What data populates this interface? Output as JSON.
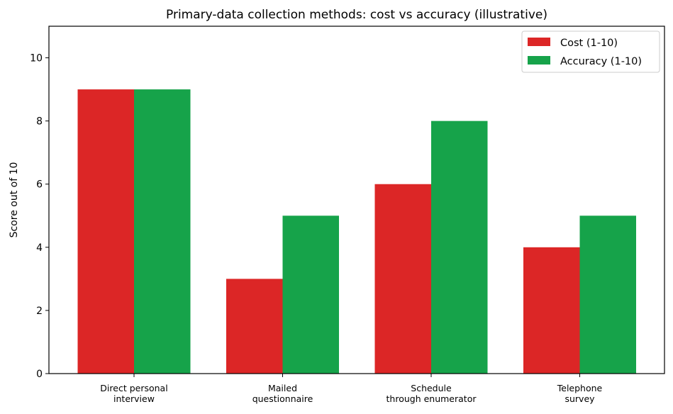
{
  "chart_data": {
    "type": "bar",
    "title": "Primary-data collection methods: cost vs accuracy (illustrative)",
    "xlabel": "",
    "ylabel": "Score out of 10",
    "ylim": [
      0,
      11
    ],
    "yticks": [
      0,
      2,
      4,
      6,
      8,
      10
    ],
    "categories": [
      [
        "Direct personal",
        "interview"
      ],
      [
        "Mailed",
        "questionnaire"
      ],
      [
        "Schedule",
        "through enumerator"
      ],
      [
        "Telephone",
        "survey"
      ]
    ],
    "series": [
      {
        "name": "Cost (1-10)",
        "values": [
          9,
          3,
          6,
          4
        ],
        "color": "#dc2626"
      },
      {
        "name": "Accuracy (1-10)",
        "values": [
          9,
          5,
          8,
          5
        ],
        "color": "#16a34a"
      }
    ],
    "grid": false,
    "legend": "top-right"
  }
}
